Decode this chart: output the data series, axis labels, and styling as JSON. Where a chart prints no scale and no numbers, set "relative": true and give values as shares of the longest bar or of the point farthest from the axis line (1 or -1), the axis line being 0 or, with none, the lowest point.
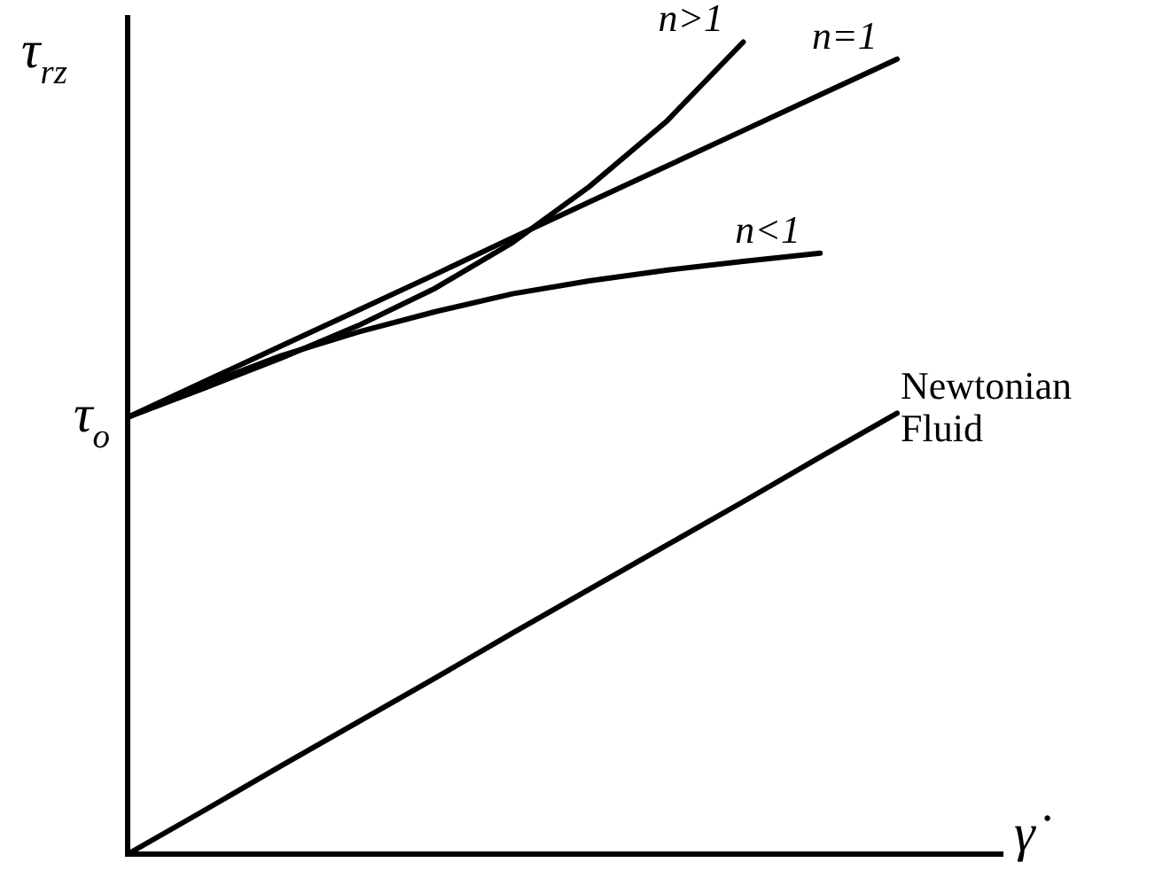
{
  "chart_data": {
    "type": "line",
    "relative": true,
    "xlabel": "γ̇",
    "ylabel": "τ$_{rz}$",
    "legend": false,
    "grid": false,
    "marker": "none",
    "line_style": "solid",
    "annotations": [
      "τ$_{o}$"
    ],
    "categories": [
      null,
      null,
      null,
      null,
      null,
      null,
      null,
      null,
      null,
      null,
      null
    ],
    "series": [
      {
        "name": "n>1",
        "color": "#000000",
        "values": [
          0.538,
          0.574,
          0.611,
          0.651,
          0.697,
          0.753,
          0.822,
          0.902,
          1,
          null,
          null
        ]
      },
      {
        "name": "n=1",
        "color": "#000000",
        "values": [
          0.538,
          0.582,
          0.626,
          0.67,
          0.714,
          0.759,
          0.803,
          0.847,
          0.891,
          0.935,
          0.979
        ]
      },
      {
        "name": "n<1",
        "color": "#000000",
        "values": [
          0.538,
          0.578,
          0.614,
          0.643,
          0.668,
          0.69,
          0.706,
          0.719,
          0.73,
          0.74,
          null
        ]
      },
      {
        "name": "Newtonian Fluid",
        "color": "#000000",
        "values": [
          0,
          0.054,
          0.109,
          0.163,
          0.217,
          0.272,
          0.326,
          0.38,
          0.434,
          0.489,
          0.543
        ]
      }
    ]
  }
}
